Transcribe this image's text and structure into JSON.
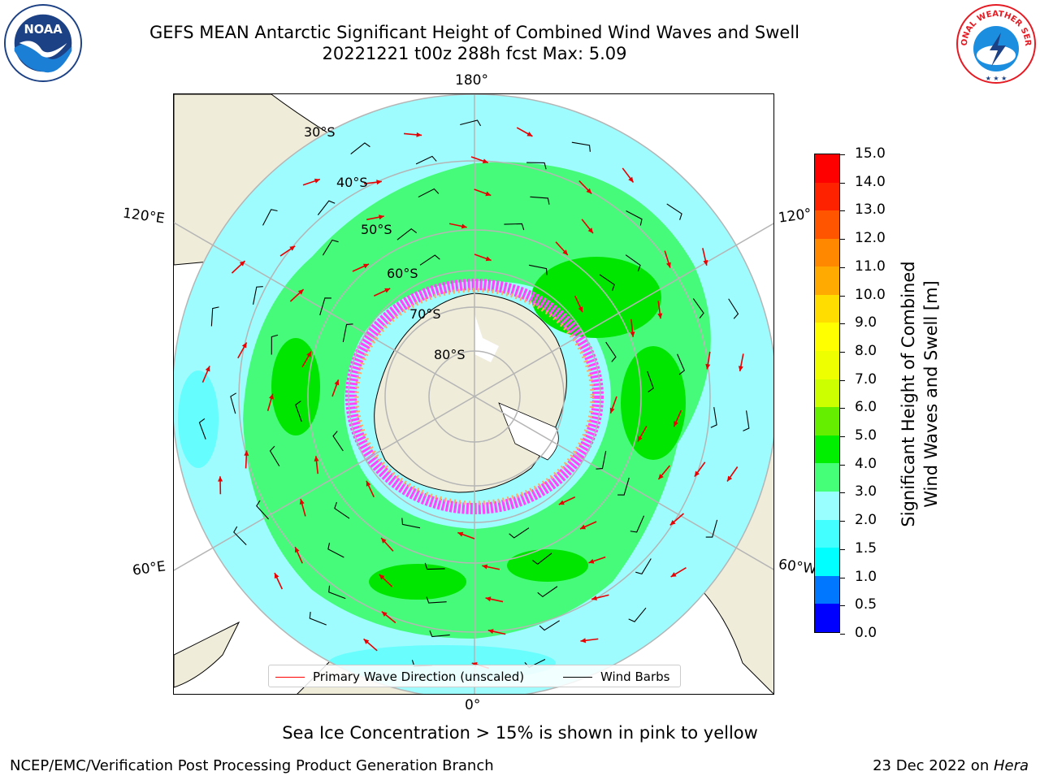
{
  "title_line1": "GEFS MEAN Antarctic Significant Height of Combined Wind Waves and Swell",
  "title_line2": "20221221 t00z 288h fcst   Max: 5.09",
  "lon_labels": {
    "top": "180°",
    "bottom": "0°",
    "upper_left": "120°E",
    "upper_right": "120°",
    "lower_left": "60°E",
    "lower_right": "60°W"
  },
  "lat_labels": [
    "30°S",
    "40°S",
    "50°S",
    "60°S",
    "70°S",
    "80°S"
  ],
  "legend": {
    "wave_label": "Primary Wave Direction (unscaled)",
    "wave_color": "#ff0000",
    "wind_label": "Wind Barbs",
    "wind_color": "#000000"
  },
  "colorbar": {
    "title_line1": "Significant Height of Combined",
    "title_line2": "Wind Waves and Swell [m]",
    "ticks": [
      "0.0",
      "0.5",
      "1.0",
      "1.5",
      "2.0",
      "3.0",
      "4.0",
      "5.0",
      "6.0",
      "7.0",
      "8.0",
      "9.0",
      "10.0",
      "11.0",
      "12.0",
      "13.0",
      "14.0",
      "15.0"
    ],
    "colors": [
      "#0000ff",
      "#0077ff",
      "#00ffff",
      "#44ffff",
      "#99ffff",
      "#44ff77",
      "#00ee00",
      "#66ee00",
      "#ccff00",
      "#eeff00",
      "#ffff00",
      "#ffdd00",
      "#ffaa00",
      "#ff8800",
      "#ff5500",
      "#ff2200",
      "#ff0000"
    ]
  },
  "colors": {
    "land": "#efecda",
    "ocean_light": "#9efcff",
    "ocean_green_light": "#47fb7a",
    "ocean_green_dark": "#00e600",
    "ocean_cyan": "#40fefe",
    "ice_pink": "#ff44ff",
    "grid": "#b5b5b5"
  },
  "footer": {
    "sea_ice_note": "Sea Ice Concentration > 15% is shown in pink to yellow",
    "credit": "NCEP/EMC/Verification Post Processing Product Generation Branch",
    "date_prefix": "23 Dec 2022 on ",
    "date_host": "Hera"
  },
  "logos": {
    "left_text": "NOAA",
    "right_text": "NATIONAL WEATHER SERVICE"
  }
}
